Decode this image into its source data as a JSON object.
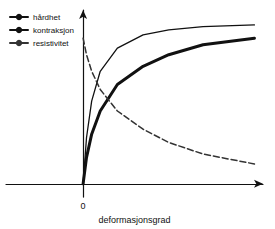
{
  "chart_data": {
    "type": "line",
    "xlabel": "deformasjonsgrad",
    "x": [
      0,
      0.02,
      0.05,
      0.1,
      0.2,
      0.35,
      0.5,
      0.7,
      1.0
    ],
    "series": [
      {
        "name": "hårdhet",
        "color": "#111111",
        "line_style": "solid",
        "values": [
          0.0,
          0.28,
          0.5,
          0.68,
          0.82,
          0.9,
          0.93,
          0.95,
          0.96
        ]
      },
      {
        "name": "kontraksjon",
        "color": "#111111",
        "line_style": "solid",
        "values": [
          0.0,
          0.16,
          0.3,
          0.44,
          0.6,
          0.71,
          0.78,
          0.84,
          0.88
        ]
      },
      {
        "name": "resistivitet",
        "color": "#333333",
        "line_style": "dashed",
        "values": [
          0.88,
          0.78,
          0.68,
          0.57,
          0.44,
          0.33,
          0.25,
          0.18,
          0.12
        ]
      }
    ],
    "xlim": [
      -0.45,
      1.05
    ],
    "ylim": [
      -0.08,
      1.05
    ],
    "xticks": [
      0
    ],
    "yticks": [],
    "tick_labels": "x",
    "grid": false,
    "legend": "upper left"
  }
}
